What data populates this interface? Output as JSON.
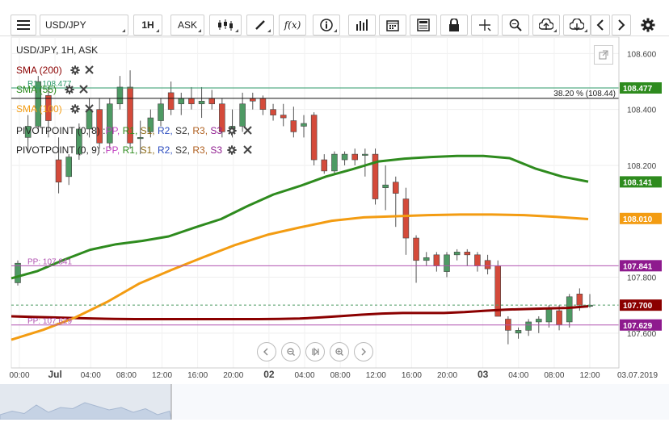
{
  "toolbar": {
    "symbol": "USD/JPY",
    "timeframe": "1H",
    "price_side": "ASK",
    "fx_label": "f(x)"
  },
  "header": {
    "title": "USD/JPY, 1H, ASK"
  },
  "indicators": [
    {
      "label": "SMA (200)",
      "color": "#8b0000"
    },
    {
      "label": "SMA (55)",
      "color": "#2e8b1e"
    },
    {
      "label": "SMA (100)",
      "color": "#f39c12"
    }
  ],
  "pivots": [
    {
      "label": "PIVOTPOINT (0, 8)",
      "parts": [
        "PP",
        "R1",
        "S1",
        "R2",
        "S2",
        "R3",
        "S3"
      ]
    },
    {
      "label": "PIVOTPOINT (0, 9)",
      "parts": [
        "PP",
        "R1",
        "S1",
        "R2",
        "S2",
        "R3",
        "S3"
      ]
    }
  ],
  "overlay_labels": {
    "r1": "R1: 108.477",
    "pp1": "PP: 107.841",
    "pp2": "PP: 107.629",
    "fib": "38.20 % (108.44)"
  },
  "price_tags": [
    {
      "value": "108.477",
      "color": "#2e8b1e"
    },
    {
      "value": "108.141",
      "color": "#2e8b1e"
    },
    {
      "value": "108.010",
      "color": "#f39c12"
    },
    {
      "value": "107.841",
      "color": "#8e1a8e"
    },
    {
      "value": "107.700",
      "color": "#8b0000"
    },
    {
      "value": "107.629",
      "color": "#8e1a8e"
    }
  ],
  "chart_data": {
    "type": "candlestick",
    "title": "USD/JPY, 1H, ASK",
    "ylim": [
      107.51,
      108.63
    ],
    "y_ticks": [
      "108.600",
      "108.400",
      "108.200",
      "107.800",
      "107.600"
    ],
    "x_ticks": [
      "00:00",
      "Jul",
      "04:00",
      "08:00",
      "12:00",
      "16:00",
      "20:00",
      "02",
      "04:00",
      "08:00",
      "12:00",
      "16:00",
      "20:00",
      "03",
      "04:00",
      "08:00",
      "12:00"
    ],
    "x_end_label": "03.07.2019",
    "candles": [
      [
        107.78,
        107.86,
        107.77,
        107.85
      ],
      [
        108.3,
        108.38,
        108.25,
        108.34
      ],
      [
        108.34,
        108.52,
        108.32,
        108.5
      ],
      [
        108.45,
        108.48,
        108.3,
        108.36
      ],
      [
        108.22,
        108.3,
        108.1,
        108.14
      ],
      [
        108.16,
        108.24,
        108.13,
        108.23
      ],
      [
        108.24,
        108.35,
        108.22,
        108.33
      ],
      [
        108.33,
        108.44,
        108.3,
        108.4
      ],
      [
        108.4,
        108.44,
        108.26,
        108.28
      ],
      [
        108.28,
        108.44,
        108.26,
        108.42
      ],
      [
        108.42,
        108.52,
        108.4,
        108.48
      ],
      [
        108.48,
        108.54,
        108.26,
        108.28
      ],
      [
        108.3,
        108.36,
        108.24,
        108.3
      ],
      [
        108.32,
        108.4,
        108.3,
        108.37
      ],
      [
        108.36,
        108.44,
        108.34,
        108.42
      ],
      [
        108.46,
        108.5,
        108.38,
        108.4
      ],
      [
        108.42,
        108.46,
        108.38,
        108.44
      ],
      [
        108.44,
        108.48,
        108.4,
        108.42
      ],
      [
        108.42,
        108.48,
        108.37,
        108.43
      ],
      [
        108.44,
        108.47,
        108.4,
        108.42
      ],
      [
        108.42,
        108.44,
        108.3,
        108.32
      ],
      [
        108.32,
        108.4,
        108.3,
        108.34
      ],
      [
        108.34,
        108.46,
        108.32,
        108.42
      ],
      [
        108.44,
        108.46,
        108.4,
        108.43
      ],
      [
        108.44,
        108.45,
        108.38,
        108.4
      ],
      [
        108.4,
        108.42,
        108.36,
        108.38
      ],
      [
        108.38,
        108.42,
        108.34,
        108.37
      ],
      [
        108.36,
        108.41,
        108.3,
        108.32
      ],
      [
        108.34,
        108.38,
        108.3,
        108.35
      ],
      [
        108.38,
        108.39,
        108.2,
        108.22
      ],
      [
        108.22,
        108.24,
        108.17,
        108.18
      ],
      [
        108.18,
        108.25,
        108.17,
        108.24
      ],
      [
        108.22,
        108.25,
        108.2,
        108.24
      ],
      [
        108.24,
        108.26,
        108.2,
        108.22
      ],
      [
        108.24,
        108.26,
        108.16,
        108.24
      ],
      [
        108.24,
        108.26,
        108.06,
        108.08
      ],
      [
        108.12,
        108.2,
        108.04,
        108.13
      ],
      [
        108.14,
        108.16,
        107.98,
        108.1
      ],
      [
        108.08,
        108.12,
        107.88,
        107.94
      ],
      [
        107.94,
        107.95,
        107.78,
        107.86
      ],
      [
        107.86,
        107.89,
        107.84,
        107.87
      ],
      [
        107.88,
        107.89,
        107.82,
        107.84
      ],
      [
        107.82,
        107.89,
        107.8,
        107.88
      ],
      [
        107.88,
        107.9,
        107.86,
        107.89
      ],
      [
        107.89,
        107.9,
        107.84,
        107.88
      ],
      [
        107.88,
        107.89,
        107.82,
        107.84
      ],
      [
        107.86,
        107.88,
        107.81,
        107.83
      ],
      [
        107.84,
        107.86,
        107.66,
        107.66
      ],
      [
        107.65,
        107.66,
        107.56,
        107.61
      ],
      [
        107.6,
        107.62,
        107.58,
        107.61
      ],
      [
        107.61,
        107.65,
        107.59,
        107.64
      ],
      [
        107.64,
        107.66,
        107.6,
        107.65
      ],
      [
        107.64,
        107.7,
        107.62,
        107.69
      ],
      [
        107.68,
        107.7,
        107.61,
        107.63
      ],
      [
        107.64,
        107.74,
        107.62,
        107.73
      ],
      [
        107.74,
        107.76,
        107.68,
        107.7
      ],
      [
        107.7,
        107.74,
        107.69,
        107.7
      ]
    ],
    "sma200": [
      107.66,
      107.658,
      107.656,
      107.654,
      107.652,
      107.651,
      107.65,
      107.65,
      107.65,
      107.65,
      107.65,
      107.65,
      107.65,
      107.651,
      107.652,
      107.656,
      107.661,
      107.666,
      107.67,
      107.672,
      107.672,
      107.672,
      107.675,
      107.68,
      107.684,
      107.686,
      107.688,
      107.69,
      107.696
    ],
    "sma55": [
      107.796,
      107.822,
      107.862,
      107.898,
      107.918,
      107.93,
      107.946,
      107.978,
      108.008,
      108.054,
      108.096,
      108.126,
      108.16,
      108.186,
      108.214,
      108.224,
      108.23,
      108.234,
      108.234,
      108.226,
      108.188,
      108.16,
      108.142
    ],
    "sma100": [
      107.576,
      107.612,
      107.656,
      107.712,
      107.778,
      107.826,
      107.872,
      107.916,
      107.952,
      107.978,
      108.002,
      108.014,
      108.018,
      108.022,
      108.024,
      108.024,
      108.022,
      108.016,
      108.008
    ],
    "current_price": 107.7
  }
}
